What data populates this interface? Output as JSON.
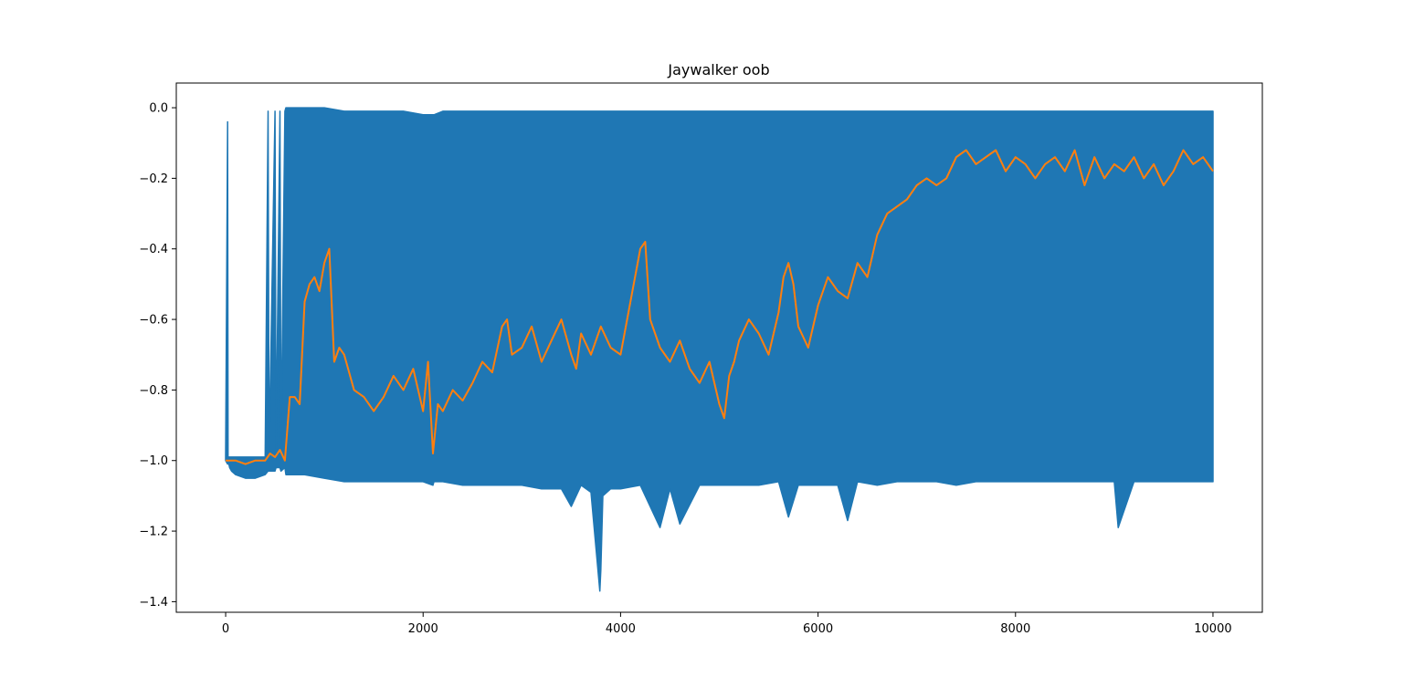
{
  "chart_data": {
    "type": "line",
    "title": "Jaywalker oob",
    "xlabel": "",
    "ylabel": "",
    "xlim": [
      -500,
      10500
    ],
    "ylim": [
      -1.43,
      0.07
    ],
    "grid": false,
    "legend": "none",
    "x_ticks": [
      0,
      2000,
      4000,
      6000,
      8000,
      10000
    ],
    "x_tick_labels": [
      "0",
      "2000",
      "4000",
      "6000",
      "8000",
      "10000"
    ],
    "y_ticks": [
      0.0,
      -0.2,
      -0.4,
      -0.6,
      -0.8,
      -1.0,
      -1.2,
      -1.4
    ],
    "y_tick_labels": [
      "0.0",
      "−0.2",
      "−0.4",
      "−0.6",
      "−0.8",
      "−1.0",
      "−1.2",
      "−1.4"
    ],
    "series": [
      {
        "color": "#1f77b4",
        "description_values": "raw per-episode values oscillating between about -1.0 and 0.0",
        "x": [
          0,
          20,
          25,
          40,
          60,
          100,
          200,
          300,
          400,
          430,
          440,
          500,
          510,
          550,
          560,
          600,
          610,
          700,
          800,
          1000,
          1200,
          1400,
          1600,
          1800,
          2000,
          2100,
          2110,
          2200,
          2400,
          2600,
          2800,
          3000,
          3200,
          3400,
          3500,
          3600,
          3700,
          3790,
          3800,
          3820,
          3900,
          4000,
          4200,
          4400,
          4500,
          4600,
          4800,
          5000,
          5200,
          5400,
          5600,
          5700,
          5800,
          6000,
          6200,
          6300,
          6400,
          6600,
          6800,
          7000,
          7200,
          7400,
          7600,
          7800,
          8000,
          8200,
          8400,
          8600,
          8800,
          9000,
          9040,
          9200,
          9400,
          9600,
          9800,
          10000
        ],
        "y_low": [
          -1.0,
          -1.01,
          -1.0,
          -1.02,
          -1.03,
          -1.04,
          -1.05,
          -1.05,
          -1.04,
          -1.03,
          -1.03,
          -1.03,
          -1.02,
          -1.02,
          -1.03,
          -1.02,
          -1.04,
          -1.04,
          -1.04,
          -1.05,
          -1.06,
          -1.06,
          -1.06,
          -1.06,
          -1.06,
          -1.07,
          -1.06,
          -1.06,
          -1.07,
          -1.07,
          -1.07,
          -1.07,
          -1.08,
          -1.08,
          -1.13,
          -1.07,
          -1.09,
          -1.37,
          -1.31,
          -1.1,
          -1.08,
          -1.08,
          -1.07,
          -1.19,
          -1.08,
          -1.18,
          -1.07,
          -1.07,
          -1.07,
          -1.07,
          -1.06,
          -1.16,
          -1.07,
          -1.07,
          -1.07,
          -1.17,
          -1.06,
          -1.07,
          -1.06,
          -1.06,
          -1.06,
          -1.07,
          -1.06,
          -1.06,
          -1.06,
          -1.06,
          -1.06,
          -1.06,
          -1.06,
          -1.06,
          -1.19,
          -1.06,
          -1.06,
          -1.06,
          -1.06,
          -1.06
        ],
        "y_high": [
          -0.99,
          -0.04,
          -0.99,
          -0.99,
          -0.99,
          -0.99,
          -0.99,
          -0.99,
          -0.99,
          -0.01,
          -0.99,
          -0.01,
          -0.99,
          -0.01,
          -0.99,
          -0.01,
          -0.0,
          -0.0,
          -0.0,
          -0.0,
          -0.01,
          -0.01,
          -0.01,
          -0.01,
          -0.02,
          -0.02,
          -0.02,
          -0.01,
          -0.01,
          -0.01,
          -0.01,
          -0.01,
          -0.01,
          -0.01,
          -0.01,
          -0.01,
          -0.01,
          -0.01,
          -0.01,
          -0.01,
          -0.01,
          -0.01,
          -0.01,
          -0.01,
          -0.01,
          -0.01,
          -0.01,
          -0.01,
          -0.01,
          -0.01,
          -0.01,
          -0.01,
          -0.01,
          -0.01,
          -0.01,
          -0.01,
          -0.01,
          -0.01,
          -0.01,
          -0.01,
          -0.01,
          -0.01,
          -0.01,
          -0.01,
          -0.01,
          -0.01,
          -0.01,
          -0.01,
          -0.01,
          -0.01,
          -0.01,
          -0.01,
          -0.01,
          -0.01,
          -0.01,
          -0.01
        ]
      },
      {
        "color": "#ff7f0e",
        "x": [
          0,
          50,
          100,
          200,
          300,
          400,
          450,
          500,
          550,
          600,
          650,
          700,
          750,
          800,
          850,
          900,
          950,
          1000,
          1050,
          1100,
          1150,
          1200,
          1300,
          1400,
          1500,
          1600,
          1700,
          1800,
          1900,
          2000,
          2050,
          2100,
          2150,
          2200,
          2300,
          2400,
          2500,
          2600,
          2700,
          2800,
          2850,
          2900,
          3000,
          3100,
          3200,
          3300,
          3400,
          3500,
          3550,
          3600,
          3700,
          3800,
          3900,
          4000,
          4100,
          4200,
          4250,
          4300,
          4400,
          4500,
          4600,
          4700,
          4800,
          4900,
          5000,
          5050,
          5100,
          5150,
          5200,
          5300,
          5400,
          5500,
          5600,
          5650,
          5700,
          5750,
          5800,
          5900,
          6000,
          6100,
          6200,
          6300,
          6400,
          6500,
          6600,
          6700,
          6800,
          6900,
          7000,
          7100,
          7200,
          7300,
          7400,
          7500,
          7600,
          7700,
          7800,
          7900,
          8000,
          8100,
          8200,
          8300,
          8400,
          8500,
          8600,
          8700,
          8800,
          8900,
          9000,
          9100,
          9200,
          9300,
          9400,
          9500,
          9600,
          9700,
          9800,
          9900,
          10000
        ],
        "y": [
          -1.0,
          -1.0,
          -1.0,
          -1.01,
          -1.0,
          -1.0,
          -0.98,
          -0.99,
          -0.97,
          -1.0,
          -0.82,
          -0.82,
          -0.84,
          -0.55,
          -0.5,
          -0.48,
          -0.52,
          -0.44,
          -0.4,
          -0.72,
          -0.68,
          -0.7,
          -0.8,
          -0.82,
          -0.86,
          -0.82,
          -0.76,
          -0.8,
          -0.74,
          -0.86,
          -0.72,
          -0.98,
          -0.84,
          -0.86,
          -0.8,
          -0.83,
          -0.78,
          -0.72,
          -0.75,
          -0.62,
          -0.6,
          -0.7,
          -0.68,
          -0.62,
          -0.72,
          -0.66,
          -0.6,
          -0.7,
          -0.74,
          -0.64,
          -0.7,
          -0.62,
          -0.68,
          -0.7,
          -0.55,
          -0.4,
          -0.38,
          -0.6,
          -0.68,
          -0.72,
          -0.66,
          -0.74,
          -0.78,
          -0.72,
          -0.84,
          -0.88,
          -0.76,
          -0.72,
          -0.66,
          -0.6,
          -0.64,
          -0.7,
          -0.58,
          -0.48,
          -0.44,
          -0.5,
          -0.62,
          -0.68,
          -0.56,
          -0.48,
          -0.52,
          -0.54,
          -0.44,
          -0.48,
          -0.36,
          -0.3,
          -0.28,
          -0.26,
          -0.22,
          -0.2,
          -0.22,
          -0.2,
          -0.14,
          -0.12,
          -0.16,
          -0.14,
          -0.12,
          -0.18,
          -0.14,
          -0.16,
          -0.2,
          -0.16,
          -0.14,
          -0.18,
          -0.12,
          -0.22,
          -0.14,
          -0.2,
          -0.16,
          -0.18,
          -0.14,
          -0.2,
          -0.16,
          -0.22,
          -0.18,
          -0.12,
          -0.16,
          -0.14,
          -0.18
        ]
      }
    ]
  }
}
